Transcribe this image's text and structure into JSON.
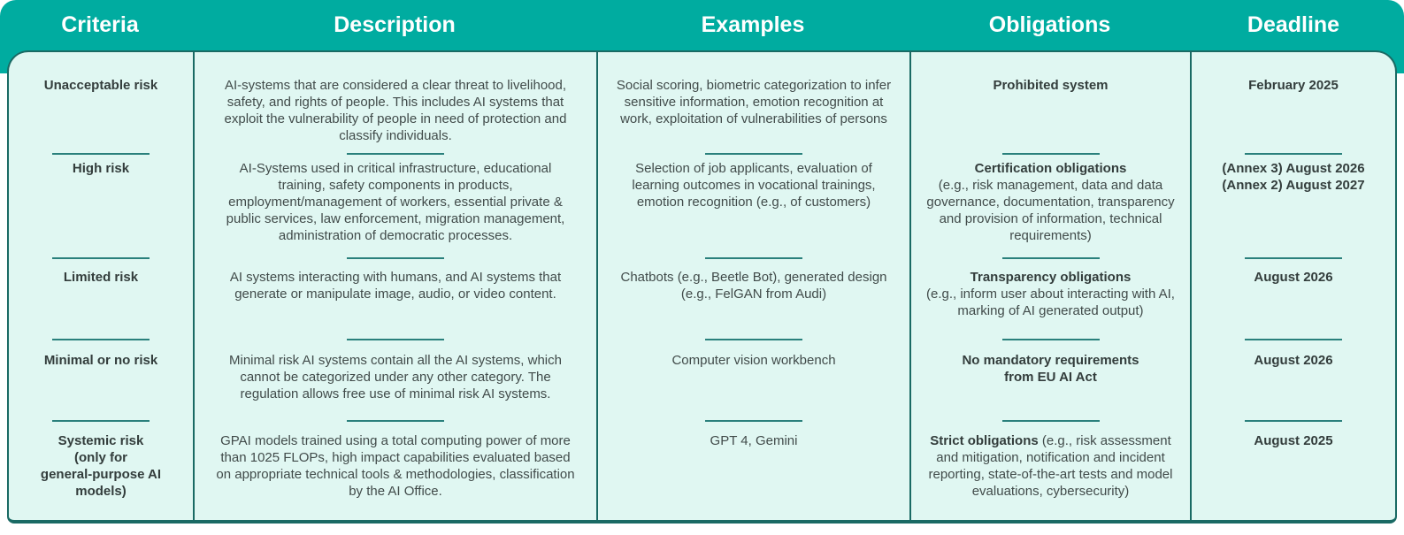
{
  "theme": {
    "header_bg": "#00aca0",
    "body_bg": "#e0f7f2",
    "border": "#1a6a64",
    "separator_line": "#2a807c",
    "header_text": "#ffffff",
    "body_text": "#414b4a"
  },
  "header": {
    "columns": [
      "Criteria",
      "Description",
      "Examples",
      "Obligations",
      "Deadline"
    ]
  },
  "rows": [
    {
      "criteria": "Unacceptable risk",
      "description": "AI-systems that are considered a clear threat to livelihood, safety, and rights of people. This includes AI systems that exploit the vulnerability of people in need of protection and classify individuals.",
      "examples": "Social scoring, biometric categorization to infer sensitive information, emotion recognition at work, exploitation of vulnerabilities of persons",
      "obligations_bold": "Prohibited system",
      "obligations_rest": "",
      "deadline": "February 2025"
    },
    {
      "criteria": "High risk",
      "description": "AI-Systems used in critical infrastructure, educational training, safety components in products, employment/management of workers, essential private & public services, law enforcement, migration management, administration of democratic processes.",
      "examples": "Selection of job applicants, evaluation of learning outcomes in vocational trainings, emotion recognition (e.g., of customers)",
      "obligations_bold": "Certification obligations",
      "obligations_rest": "\n(e.g., risk management, data and data governance, documentation, transparency and provision of information, technical requirements)",
      "deadline": "(Annex 3) August 2026\n(Annex 2) August 2027"
    },
    {
      "criteria": "Limited risk",
      "description": "AI systems interacting with humans, and AI systems that generate or manipulate image, audio, or video content.",
      "examples": "Chatbots (e.g., Beetle Bot), generated design (e.g., FelGAN from Audi)",
      "obligations_bold": "Transparency obligations",
      "obligations_rest": "\n(e.g., inform user about interacting with AI, marking of AI generated output)",
      "deadline": "August 2026"
    },
    {
      "criteria": "Minimal or no risk",
      "description": "Minimal risk AI systems contain all the AI systems, which cannot be categorized under any other category. The regulation allows free use of minimal risk AI systems.",
      "examples": "Computer vision workbench",
      "obligations_bold": "No mandatory requirements\nfrom EU AI Act",
      "obligations_rest": "",
      "deadline": "August 2026"
    },
    {
      "criteria": "Systemic risk\n(only for\ngeneral-purpose AI\nmodels)",
      "description": "GPAI models trained using a total computing power of more than 1025 FLOPs, high impact capabilities evaluated based on appropriate technical tools & methodologies, classification by the AI Office.",
      "examples": "GPT 4, Gemini",
      "obligations_bold": "Strict obligations",
      "obligations_rest": " (e.g., risk assessment and mitigation, notification and incident reporting, state-of-the-art tests and model evaluations, cybersecurity)",
      "deadline": "August 2025"
    }
  ],
  "chart_data": {
    "type": "table",
    "title": "EU AI Act risk categories",
    "columns": [
      "Criteria",
      "Description",
      "Examples",
      "Obligations",
      "Deadline"
    ],
    "rows": [
      [
        "Unacceptable risk",
        "AI-systems that are considered a clear threat to livelihood, safety, and rights of people. This includes AI systems that exploit the vulnerability of people in need of protection and classify individuals.",
        "Social scoring, biometric categorization to infer sensitive information, emotion recognition at work, exploitation of vulnerabilities of persons",
        "Prohibited system",
        "February 2025"
      ],
      [
        "High risk",
        "AI-Systems used in critical infrastructure, educational training, safety components in products, employment/management of workers, essential private & public services, law enforcement, migration management, administration of democratic processes.",
        "Selection of job applicants, evaluation of learning outcomes in vocational trainings, emotion recognition (e.g., of customers)",
        "Certification obligations (e.g., risk management, data and data governance, documentation, transparency and provision of information, technical requirements)",
        "(Annex 3) August 2026 / (Annex 2) August 2027"
      ],
      [
        "Limited risk",
        "AI systems interacting with humans, and AI systems that generate or manipulate image, audio, or video content.",
        "Chatbots (e.g., Beetle Bot), generated design (e.g., FelGAN from Audi)",
        "Transparency obligations (e.g., inform user about interacting with AI, marking of AI generated output)",
        "August 2026"
      ],
      [
        "Minimal or no risk",
        "Minimal risk AI systems contain all the AI systems, which cannot be categorized under any other category. The regulation allows free use of minimal risk AI systems.",
        "Computer vision workbench",
        "No mandatory requirements from EU AI Act",
        "August 2026"
      ],
      [
        "Systemic risk (only for general-purpose AI models)",
        "GPAI models trained using a total computing power of more than 1025 FLOPs, high impact capabilities evaluated based on appropriate technical tools & methodologies, classification by the AI Office.",
        "GPT 4, Gemini",
        "Strict obligations (e.g., risk assessment and mitigation, notification and incident reporting, state-of-the-art tests and model evaluations, cybersecurity)",
        "August 2025"
      ]
    ]
  }
}
